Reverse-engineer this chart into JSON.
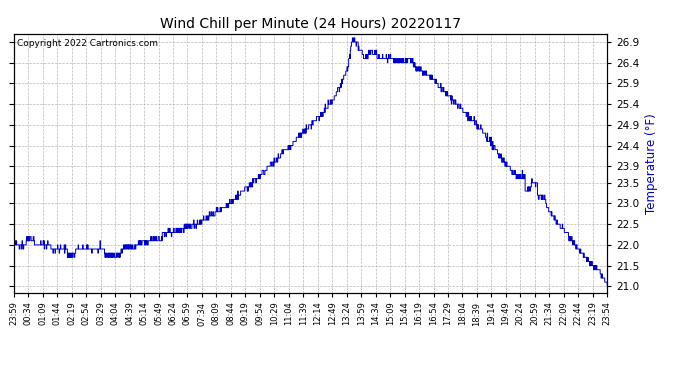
{
  "title": "Wind Chill per Minute (24 Hours) 20220117",
  "ylabel": "Temperature (°F)",
  "copyright": "Copyright 2022 Cartronics.com",
  "line_color": "#0000cc",
  "ylabel_color": "#0000cc",
  "background_color": "#ffffff",
  "grid_color": "#aaaaaa",
  "ylim": [
    20.85,
    27.1
  ],
  "yticks": [
    21.0,
    21.5,
    22.0,
    22.5,
    23.0,
    23.5,
    23.9,
    24.4,
    24.9,
    25.4,
    25.9,
    26.4,
    26.9
  ],
  "x_labels": [
    "23:59",
    "00:34",
    "01:09",
    "01:44",
    "02:19",
    "02:54",
    "03:29",
    "04:04",
    "04:39",
    "05:14",
    "05:49",
    "06:24",
    "06:59",
    "07:34",
    "08:09",
    "08:44",
    "09:19",
    "09:54",
    "10:29",
    "11:04",
    "11:39",
    "12:14",
    "12:49",
    "13:24",
    "13:59",
    "14:34",
    "15:09",
    "15:44",
    "16:19",
    "16:54",
    "17:29",
    "18:04",
    "18:39",
    "19:14",
    "19:49",
    "20:24",
    "20:59",
    "21:34",
    "22:09",
    "22:44",
    "23:19",
    "23:54"
  ]
}
